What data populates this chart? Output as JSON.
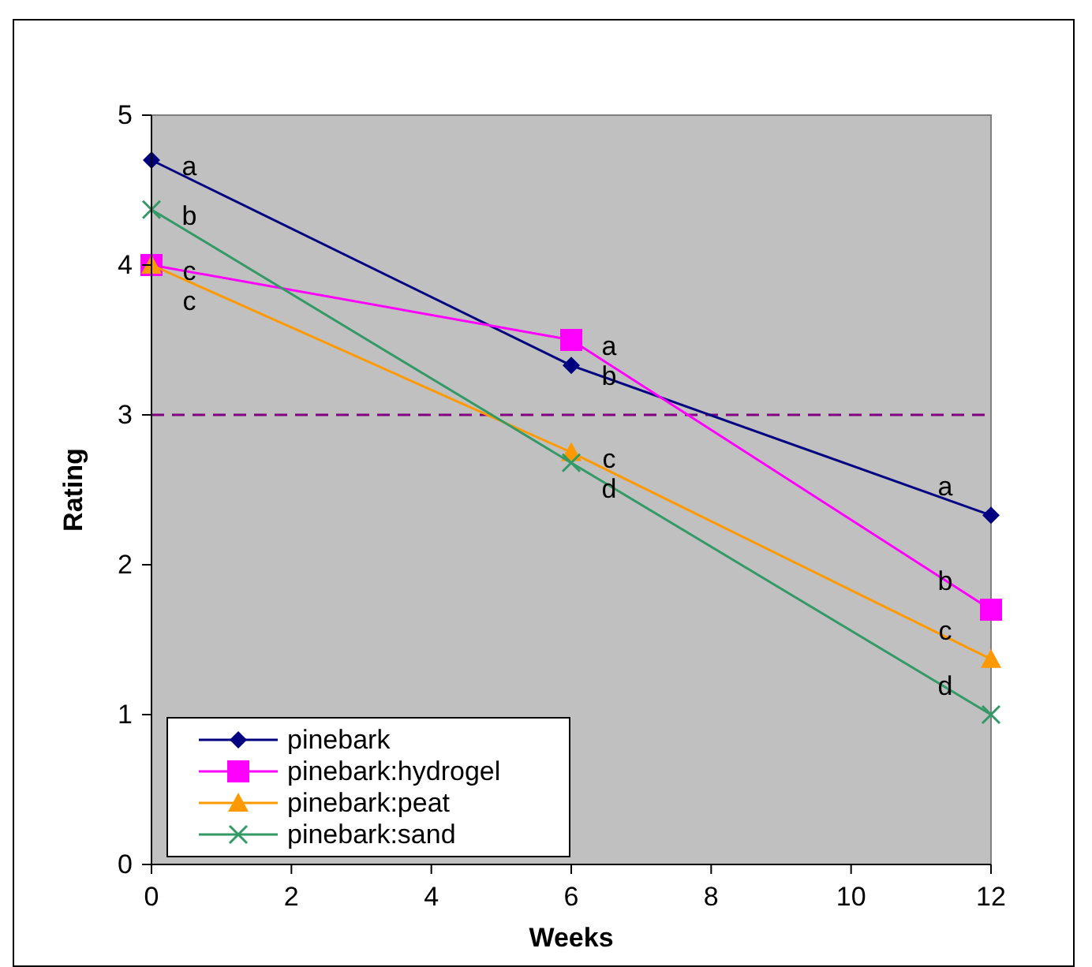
{
  "chart_data": {
    "type": "line",
    "xlabel": "Weeks",
    "ylabel": "Rating",
    "x": [
      0,
      6,
      12
    ],
    "xlim": [
      0,
      12
    ],
    "xticks": [
      0,
      2,
      4,
      6,
      8,
      10,
      12
    ],
    "ylim": [
      0,
      5
    ],
    "yticks": [
      0,
      1,
      2,
      3,
      4,
      5
    ],
    "grid": false,
    "legend": "bottom left",
    "marker": "circle",
    "line_style": "solid",
    "series": [
      {
        "name": "pinebark",
        "color": "#000080",
        "marker": "diamond",
        "values": [
          4.7,
          3.33,
          2.33
        ]
      },
      {
        "name": "pinebark:hydrogel",
        "color": "#ff00ff",
        "marker": "square",
        "values": [
          4.0,
          3.5,
          1.7
        ]
      },
      {
        "name": "pinebark:peat",
        "color": "#ff9900",
        "marker": "triangle",
        "values": [
          4.0,
          2.75,
          1.37
        ]
      },
      {
        "name": "pinebark:sand",
        "color": "#339966",
        "marker": "cross",
        "values": [
          4.37,
          2.68,
          1.0
        ]
      }
    ],
    "ref_lines": [
      {
        "axis": "y",
        "value": 3,
        "color": "#800080",
        "line_style": "dashed"
      }
    ],
    "annotations": [
      {
        "text": "a",
        "x": 0,
        "y": 4.7
      },
      {
        "text": "b",
        "x": 0,
        "y": 4.37
      },
      {
        "text": "c",
        "x": 0,
        "y": 4.0
      },
      {
        "text": "c",
        "x": 0,
        "y": 4.0
      },
      {
        "text": "a",
        "x": 6,
        "y": 3.5
      },
      {
        "text": "b",
        "x": 6,
        "y": 3.33
      },
      {
        "text": "c",
        "x": 6,
        "y": 2.75
      },
      {
        "text": "d",
        "x": 6,
        "y": 2.68
      },
      {
        "text": "a",
        "x": 12,
        "y": 2.33
      },
      {
        "text": "b",
        "x": 12,
        "y": 1.7
      },
      {
        "text": "c",
        "x": 12,
        "y": 1.37
      },
      {
        "text": "d",
        "x": 12,
        "y": 1.0
      }
    ]
  }
}
